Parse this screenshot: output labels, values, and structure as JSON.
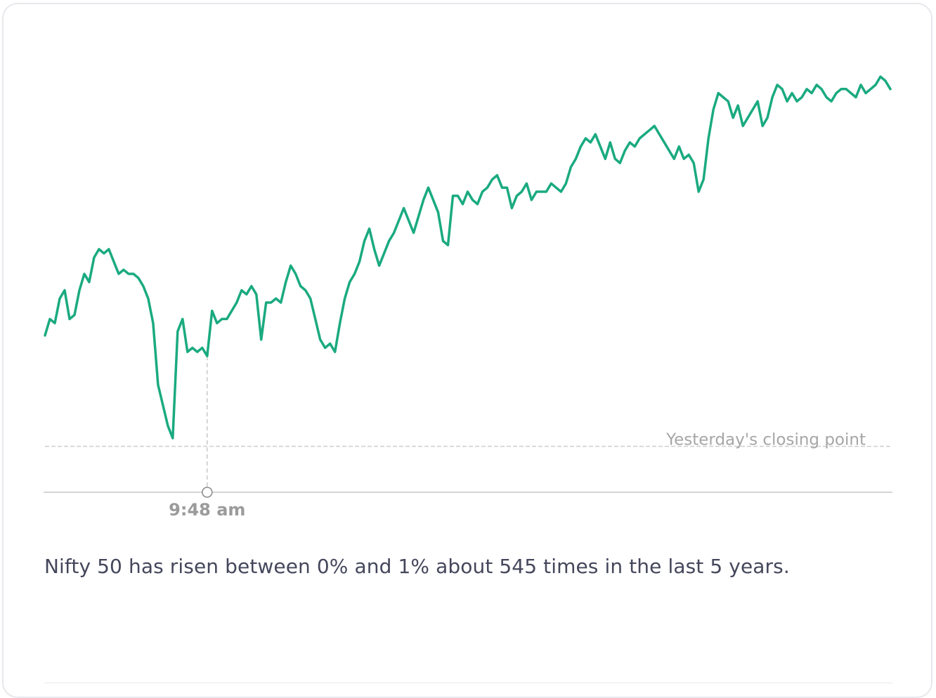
{
  "colors": {
    "line": "#1aaa80",
    "reference_line": "#cfcfcf",
    "axis": "#c9c9c9",
    "reference_label": "#a6a6a6",
    "marker_label": "#9b9b9b",
    "text": "#44475b"
  },
  "chart_data": {
    "type": "line",
    "title": "",
    "xlabel": "",
    "ylabel": "",
    "x_unit": "trading-session sample index (first sample at market open)",
    "y_unit": "percent change vs yesterday's close (estimated)",
    "ylim": [
      -0.11,
      0.95
    ],
    "reference_line": {
      "label": "Yesterday's closing point",
      "value": 0
    },
    "marker": {
      "label": "9:48 am",
      "index": 33
    },
    "grid": false,
    "legend": "none",
    "series": [
      {
        "values": [
          0.27,
          0.31,
          0.3,
          0.36,
          0.38,
          0.31,
          0.32,
          0.38,
          0.42,
          0.4,
          0.46,
          0.48,
          0.47,
          0.48,
          0.45,
          0.42,
          0.43,
          0.42,
          0.42,
          0.41,
          0.39,
          0.36,
          0.3,
          0.15,
          0.1,
          0.05,
          0.02,
          0.28,
          0.31,
          0.23,
          0.24,
          0.23,
          0.24,
          0.22,
          0.33,
          0.3,
          0.31,
          0.31,
          0.33,
          0.35,
          0.38,
          0.37,
          0.39,
          0.37,
          0.26,
          0.35,
          0.35,
          0.36,
          0.35,
          0.4,
          0.44,
          0.42,
          0.39,
          0.38,
          0.36,
          0.31,
          0.26,
          0.24,
          0.25,
          0.23,
          0.3,
          0.36,
          0.4,
          0.42,
          0.45,
          0.5,
          0.53,
          0.48,
          0.44,
          0.47,
          0.5,
          0.52,
          0.55,
          0.58,
          0.55,
          0.52,
          0.56,
          0.6,
          0.63,
          0.6,
          0.57,
          0.5,
          0.49,
          0.61,
          0.61,
          0.59,
          0.62,
          0.6,
          0.59,
          0.62,
          0.63,
          0.65,
          0.66,
          0.63,
          0.63,
          0.58,
          0.61,
          0.62,
          0.64,
          0.6,
          0.62,
          0.62,
          0.62,
          0.64,
          0.63,
          0.62,
          0.64,
          0.68,
          0.7,
          0.73,
          0.75,
          0.74,
          0.76,
          0.73,
          0.7,
          0.74,
          0.7,
          0.69,
          0.72,
          0.74,
          0.73,
          0.75,
          0.76,
          0.77,
          0.78,
          0.76,
          0.74,
          0.72,
          0.7,
          0.73,
          0.7,
          0.71,
          0.69,
          0.62,
          0.65,
          0.75,
          0.82,
          0.86,
          0.85,
          0.84,
          0.8,
          0.83,
          0.78,
          0.8,
          0.82,
          0.84,
          0.78,
          0.8,
          0.85,
          0.88,
          0.87,
          0.84,
          0.86,
          0.84,
          0.85,
          0.87,
          0.86,
          0.88,
          0.87,
          0.85,
          0.84,
          0.86,
          0.87,
          0.87,
          0.86,
          0.85,
          0.88,
          0.86,
          0.87,
          0.88,
          0.9,
          0.89,
          0.87
        ]
      }
    ]
  },
  "summary_text": "Nifty 50 has risen between 0% and 1% about 545 times in the last 5 years."
}
